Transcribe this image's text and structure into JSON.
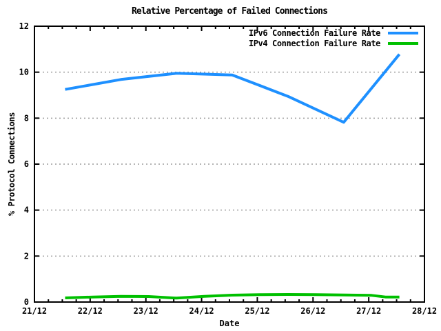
{
  "chart_data": {
    "type": "line",
    "title": "Relative Percentage of Failed Connections",
    "xlabel": "Date",
    "ylabel": "% Protocol Connections",
    "x_tick_labels": [
      "21/12",
      "22/12",
      "23/12",
      "24/12",
      "25/12",
      "26/12",
      "27/12",
      "28/12"
    ],
    "x_tick_days": [
      21,
      22,
      23,
      24,
      25,
      26,
      27,
      28
    ],
    "x_minor_tick_interval_days": 0.25,
    "xlim_days": [
      21,
      28
    ],
    "y_ticks": [
      0,
      2,
      4,
      6,
      8,
      10,
      12
    ],
    "ylim": [
      0,
      12
    ],
    "grid": {
      "horizontal": true,
      "vertical": false,
      "style": "dotted",
      "color": "#9c9c9c"
    },
    "legend": {
      "position": "inside-top-right"
    },
    "axis_color": "#000000",
    "background_color": "#ffffff",
    "series": [
      {
        "name": "IPv6 Connection Failure Rate",
        "color": "#1e90ff",
        "x": [
          21.55,
          22.55,
          23.55,
          24.55,
          25.55,
          26.55,
          27.55
        ],
        "y": [
          9.25,
          9.68,
          9.95,
          9.88,
          8.95,
          7.82,
          10.78
        ]
      },
      {
        "name": "IPv4 Connection Failure Rate",
        "color": "#00c000",
        "x": [
          21.55,
          22.05,
          22.55,
          23.05,
          23.55,
          24.05,
          24.55,
          25.05,
          25.55,
          26.05,
          26.55,
          27.05,
          27.3,
          27.55
        ],
        "y": [
          0.18,
          0.22,
          0.25,
          0.24,
          0.17,
          0.25,
          0.3,
          0.32,
          0.33,
          0.32,
          0.31,
          0.29,
          0.22,
          0.22
        ]
      }
    ]
  }
}
